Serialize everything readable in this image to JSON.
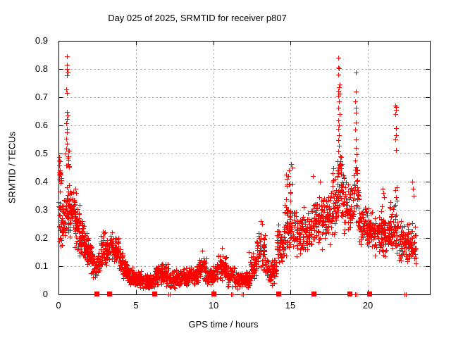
{
  "chart_data": {
    "type": "scatter",
    "title": "Day 025 of 2025, SRMTID for receiver p807",
    "xlabel": "GPS time / hours",
    "ylabel": "SRMTID / TECUs",
    "xlim": [
      0,
      24
    ],
    "ylim": [
      0,
      0.9
    ],
    "xticks": [
      {
        "v": 0,
        "label": "0"
      },
      {
        "v": 5,
        "label": "5"
      },
      {
        "v": 10,
        "label": "10"
      },
      {
        "v": 15,
        "label": "15"
      },
      {
        "v": 20,
        "label": "20"
      }
    ],
    "yticks": [
      {
        "v": 0,
        "label": "0"
      },
      {
        "v": 0.1,
        "label": "0.1"
      },
      {
        "v": 0.2,
        "label": "0.2"
      },
      {
        "v": 0.3,
        "label": "0.3"
      },
      {
        "v": 0.4,
        "label": "0.4"
      },
      {
        "v": 0.5,
        "label": "0.5"
      },
      {
        "v": 0.6,
        "label": "0.6"
      },
      {
        "v": 0.7,
        "label": "0.7"
      },
      {
        "v": 0.8,
        "label": "0.8"
      },
      {
        "v": 0.9,
        "label": "0.9"
      }
    ],
    "grid": true,
    "legend": "none",
    "marker_color": "#ff0000",
    "grid_color": "#9b9b9b",
    "axis_color": "#000000",
    "background": "#ffffff",
    "seed": 20250125,
    "series": [
      {
        "name": "srmtid-plus-markers",
        "marker": "plus",
        "bands": [
          [
            0,
            0.18,
            0.14,
            0.38,
            22
          ],
          [
            0.02,
            0.2,
            0.39,
            0.49,
            9
          ],
          [
            0.18,
            0.42,
            0.15,
            0.35,
            28
          ],
          [
            0.42,
            0.75,
            0.2,
            0.42,
            48
          ],
          [
            0.46,
            0.7,
            0.43,
            0.52,
            7
          ],
          [
            0.75,
            1.05,
            0.22,
            0.38,
            42
          ],
          [
            1.05,
            1.35,
            0.15,
            0.33,
            45
          ],
          [
            1.35,
            1.65,
            0.12,
            0.27,
            48
          ],
          [
            1.65,
            1.95,
            0.1,
            0.23,
            48
          ],
          [
            1.95,
            2.2,
            0.07,
            0.19,
            38
          ],
          [
            2.2,
            2.45,
            0.05,
            0.15,
            32
          ],
          [
            2.52,
            2.72,
            0.065,
            0.16,
            25
          ],
          [
            2.72,
            3.05,
            0.08,
            0.24,
            40
          ],
          [
            3.05,
            3.3,
            0.09,
            0.2,
            30
          ],
          [
            3.34,
            3.62,
            0.1,
            0.235,
            38
          ],
          [
            3.62,
            3.9,
            0.1,
            0.215,
            38
          ],
          [
            3.9,
            4.15,
            0.07,
            0.17,
            33
          ],
          [
            4.15,
            4.45,
            0.045,
            0.13,
            40
          ],
          [
            4.45,
            4.8,
            0.03,
            0.1,
            48
          ],
          [
            4.8,
            5.4,
            0.022,
            0.085,
            75
          ],
          [
            5.4,
            6.18,
            0.018,
            0.075,
            95
          ],
          [
            6.22,
            6.6,
            0.03,
            0.105,
            48
          ],
          [
            6.6,
            7.1,
            0.025,
            0.115,
            60
          ],
          [
            7.12,
            7.6,
            0.02,
            0.085,
            60
          ],
          [
            7.6,
            8.4,
            0.025,
            0.095,
            95
          ],
          [
            8.4,
            9,
            0.03,
            0.11,
            72
          ],
          [
            9,
            9.55,
            0.04,
            0.14,
            65
          ],
          [
            9.55,
            9.98,
            0.03,
            0.095,
            50
          ],
          [
            10.02,
            10.3,
            0.04,
            0.11,
            35
          ],
          [
            10.3,
            10.85,
            0.045,
            0.145,
            65
          ],
          [
            10.85,
            11.4,
            0.025,
            0.1,
            65
          ],
          [
            11.4,
            12.4,
            0.018,
            0.085,
            115
          ],
          [
            12.4,
            12.8,
            0.04,
            0.15,
            48
          ],
          [
            12.8,
            13.35,
            0.07,
            0.235,
            62
          ],
          [
            13.4,
            14.1,
            0.03,
            0.135,
            75
          ],
          [
            14.1,
            14.6,
            0.08,
            0.27,
            55
          ],
          [
            14.6,
            15.15,
            0.12,
            0.345,
            60
          ],
          [
            14.7,
            15.2,
            0.35,
            0.435,
            10
          ],
          [
            15.15,
            15.7,
            0.13,
            0.3,
            55
          ],
          [
            15.7,
            16.3,
            0.14,
            0.33,
            62
          ],
          [
            16.3,
            17.1,
            0.15,
            0.355,
            80
          ],
          [
            17.1,
            17.6,
            0.17,
            0.375,
            52
          ],
          [
            17.6,
            18,
            0.2,
            0.42,
            45
          ],
          [
            18,
            18.3,
            0.24,
            0.5,
            40
          ],
          [
            18.3,
            18.75,
            0.21,
            0.43,
            48
          ],
          [
            18.78,
            19.05,
            0.2,
            0.4,
            30
          ],
          [
            19.05,
            19.4,
            0.22,
            0.46,
            38
          ],
          [
            19.4,
            19.9,
            0.16,
            0.33,
            55
          ],
          [
            19.9,
            20.4,
            0.15,
            0.31,
            58
          ],
          [
            20.4,
            20.9,
            0.13,
            0.3,
            58
          ],
          [
            20.9,
            21.4,
            0.13,
            0.295,
            58
          ],
          [
            21.4,
            21.95,
            0.14,
            0.33,
            60
          ],
          [
            21.95,
            22.4,
            0.115,
            0.27,
            50
          ],
          [
            22.42,
            23.1,
            0.1,
            0.26,
            70
          ]
        ],
        "points": [
          [
            0.56,
            0.845
          ],
          [
            0.54,
            0.815
          ],
          [
            0.56,
            0.8
          ],
          [
            0.57,
            0.79
          ],
          [
            0.55,
            0.778
          ],
          [
            0.52,
            0.728
          ],
          [
            0.56,
            0.716
          ],
          [
            0.53,
            0.648
          ],
          [
            0.57,
            0.636
          ],
          [
            0.55,
            0.622
          ],
          [
            0.5,
            0.607
          ],
          [
            0.53,
            0.588
          ],
          [
            0.56,
            0.576
          ],
          [
            0.51,
            0.552
          ],
          [
            0.54,
            0.536
          ],
          [
            0.5,
            0.518
          ],
          [
            0.47,
            0.5
          ],
          [
            0.62,
            0.51
          ],
          [
            0.65,
            0.478
          ],
          [
            0.7,
            0.455
          ],
          [
            0.04,
            0.488
          ],
          [
            0.07,
            0.472
          ],
          [
            0.05,
            0.458
          ],
          [
            0.09,
            0.44
          ],
          [
            0.12,
            0.424
          ],
          [
            0.03,
            0.408
          ],
          [
            1.1,
            0.375
          ],
          [
            1.15,
            0.36
          ],
          [
            9.3,
            0.155
          ],
          [
            10.55,
            0.165
          ],
          [
            12.3,
            0.15
          ],
          [
            13.05,
            0.26
          ],
          [
            13.15,
            0.25
          ],
          [
            14.85,
            0.42
          ],
          [
            14.9,
            0.44
          ],
          [
            15.05,
            0.462
          ],
          [
            15.1,
            0.45
          ],
          [
            16.45,
            0.42
          ],
          [
            16.9,
            0.4
          ],
          [
            17.7,
            0.43
          ],
          [
            17.78,
            0.448
          ],
          [
            18.1,
            0.84
          ],
          [
            18.08,
            0.806
          ],
          [
            18.13,
            0.802
          ],
          [
            18.1,
            0.781
          ],
          [
            18.15,
            0.746
          ],
          [
            18.12,
            0.736
          ],
          [
            18.1,
            0.722
          ],
          [
            18.16,
            0.712
          ],
          [
            18.08,
            0.704
          ],
          [
            18.12,
            0.685
          ],
          [
            18.1,
            0.662
          ],
          [
            18.15,
            0.64
          ],
          [
            18.1,
            0.617
          ],
          [
            18.13,
            0.6
          ],
          [
            18.08,
            0.588
          ],
          [
            18.12,
            0.565
          ],
          [
            18.1,
            0.548
          ],
          [
            18.14,
            0.528
          ],
          [
            18.1,
            0.508
          ],
          [
            18.2,
            0.49
          ],
          [
            18.05,
            0.472
          ],
          [
            18.24,
            0.458
          ],
          [
            19.2,
            0.787
          ],
          [
            19.22,
            0.72
          ],
          [
            19.18,
            0.685
          ],
          [
            19.21,
            0.663
          ],
          [
            19.24,
            0.645
          ],
          [
            19.2,
            0.61
          ],
          [
            19.17,
            0.585
          ],
          [
            19.22,
            0.55
          ],
          [
            19.2,
            0.52
          ],
          [
            19.25,
            0.498
          ],
          [
            19.18,
            0.475
          ],
          [
            19.23,
            0.452
          ],
          [
            19.2,
            0.43
          ],
          [
            20.95,
            0.375
          ],
          [
            21,
            0.36
          ],
          [
            21.05,
            0.345
          ],
          [
            20.9,
            0.312
          ],
          [
            21.78,
            0.67
          ],
          [
            21.82,
            0.664
          ],
          [
            21.8,
            0.655
          ],
          [
            21.76,
            0.64
          ],
          [
            21.8,
            0.59
          ],
          [
            21.83,
            0.566
          ],
          [
            21.78,
            0.55
          ],
          [
            21.8,
            0.512
          ],
          [
            21.85,
            0.38
          ],
          [
            21.75,
            0.37
          ],
          [
            21.8,
            0.346
          ],
          [
            21.87,
            0.332
          ],
          [
            21.78,
            0.318
          ],
          [
            22.85,
            0.4
          ],
          [
            22.9,
            0.376
          ],
          [
            22.95,
            0.35
          ],
          [
            7.12,
            0
          ],
          [
            7.2,
            0
          ],
          [
            11.15,
            0
          ],
          [
            11.25,
            0
          ],
          [
            11.85,
            0
          ],
          [
            11.95,
            0
          ],
          [
            19.15,
            0
          ],
          [
            19.25,
            0
          ],
          [
            22.35,
            0
          ],
          [
            22.45,
            0
          ]
        ]
      },
      {
        "name": "zero-level-squares",
        "marker": "filled-square",
        "y": 0,
        "x": [
          2.45,
          3.3,
          6.2,
          10.0,
          14.2,
          16.5,
          18.8,
          20.1
        ]
      }
    ]
  }
}
